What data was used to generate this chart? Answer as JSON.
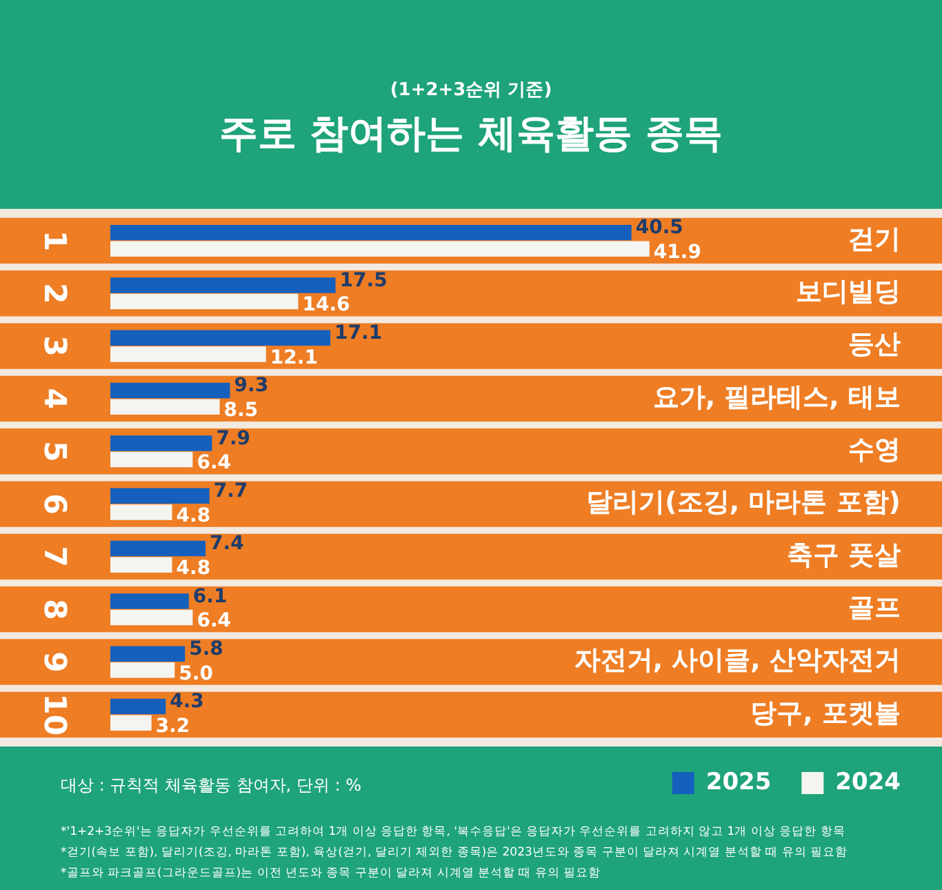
{
  "chart_data": {
    "type": "bar",
    "orientation": "horizontal",
    "title": "주로 참여하는 체육활동 종목",
    "subtitle": "(1+2+3순위 기준)",
    "categories": [
      "걷기",
      "보디빌딩",
      "등산",
      "요가, 필라테스, 태보",
      "수영",
      "달리기(조깅, 마라톤 포함)",
      "축구 풋살",
      "골프",
      "자전거, 사이클, 산악자전거",
      "당구, 포켓볼"
    ],
    "series": [
      {
        "name": "2025",
        "color": "#1560bd",
        "values": [
          40.5,
          17.5,
          17.1,
          9.3,
          7.9,
          7.7,
          7.4,
          6.1,
          5.8,
          4.3
        ],
        "value_labels": [
          "40.5",
          "17.5",
          "17.1",
          "9.3",
          "7.9",
          "7.7",
          "7.4",
          "6.1",
          "5.8",
          "4.3"
        ]
      },
      {
        "name": "2024",
        "color": "#f4f4f0",
        "values": [
          41.9,
          14.6,
          12.1,
          8.5,
          6.4,
          4.8,
          4.8,
          6.4,
          5.0,
          3.2
        ],
        "value_labels": [
          "41.9",
          "14.6",
          "12.1",
          "8.5",
          "6.4",
          "4.8",
          "4.8",
          "6.4",
          "5.0",
          "3.2"
        ]
      }
    ],
    "legend": "bottom right",
    "grid": false,
    "annotations": [
      "1",
      "2",
      "3",
      "4",
      "5",
      "6",
      "7",
      "8",
      "9",
      "10",
      "대상 : 규칙적 체육활동 참여자, 단위 : %",
      "*'1+2+3순위'는 응답자가 우선순위를 고려하여 1개 이상 응답한 항목, '복수응답'은 응답자가 우선순위를 고려하지 않고 1개 이상 응답한 항목",
      "*걷기(속보 포함), 달리기(조깅, 마라톤 포함), 육상(걷기, 달리기 제외한 종목)은 2023년도와 종목 구분이 달라져 시계열 분석할 때 유의 필요함",
      "*골프와 파크골프(그라운드골프)는 이전 년도와 종목 구분이 달라져 시계열 분석할 때 유의 필요함"
    ]
  }
}
